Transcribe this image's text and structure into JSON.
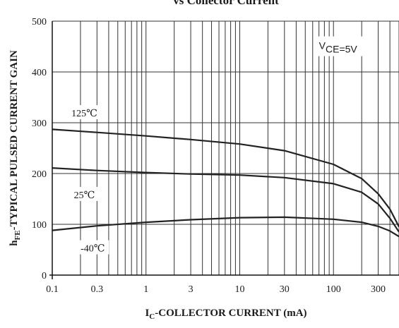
{
  "chart_data": {
    "type": "line",
    "title": "vs Collector Current",
    "xlabel": "I",
    "xlabel_sub": "C",
    "xlabel_rest": "-COLLECTOR CURRENT (mA)",
    "ylabel": "h",
    "ylabel_sub": "FE",
    "ylabel_rest": "-TYPICAL PULSED CURRENT GAIN",
    "x_scale": "log",
    "xlim": [
      0.1,
      500
    ],
    "ylim": [
      0,
      500
    ],
    "x_ticks": [
      0.1,
      0.3,
      1,
      3,
      10,
      30,
      100,
      300
    ],
    "x_tick_labels": [
      "0.1",
      "0.3",
      "1",
      "3",
      "10",
      "30",
      "100",
      "300"
    ],
    "y_ticks": [
      0,
      100,
      200,
      300,
      400,
      500
    ],
    "y_tick_labels": [
      "0",
      "100",
      "200",
      "300",
      "400",
      "500"
    ],
    "grid": true,
    "condition_prefix": "V",
    "condition_sub": "CE=5V",
    "series": [
      {
        "name": "125℃",
        "x": [
          0.1,
          0.3,
          1,
          3,
          10,
          30,
          100,
          200,
          300,
          400,
          500
        ],
        "y": [
          287,
          281,
          274,
          267,
          258,
          245,
          218,
          190,
          160,
          130,
          95
        ]
      },
      {
        "name": "25℃",
        "x": [
          0.1,
          0.3,
          1,
          3,
          10,
          30,
          100,
          200,
          300,
          400,
          500
        ],
        "y": [
          211,
          206,
          202,
          199,
          197,
          192,
          180,
          163,
          140,
          112,
          85
        ]
      },
      {
        "name": "-40℃",
        "x": [
          0.1,
          0.3,
          1,
          3,
          10,
          30,
          100,
          200,
          300,
          400,
          500
        ],
        "y": [
          88,
          97,
          104,
          109,
          113,
          114,
          110,
          104,
          96,
          87,
          76
        ]
      }
    ]
  }
}
